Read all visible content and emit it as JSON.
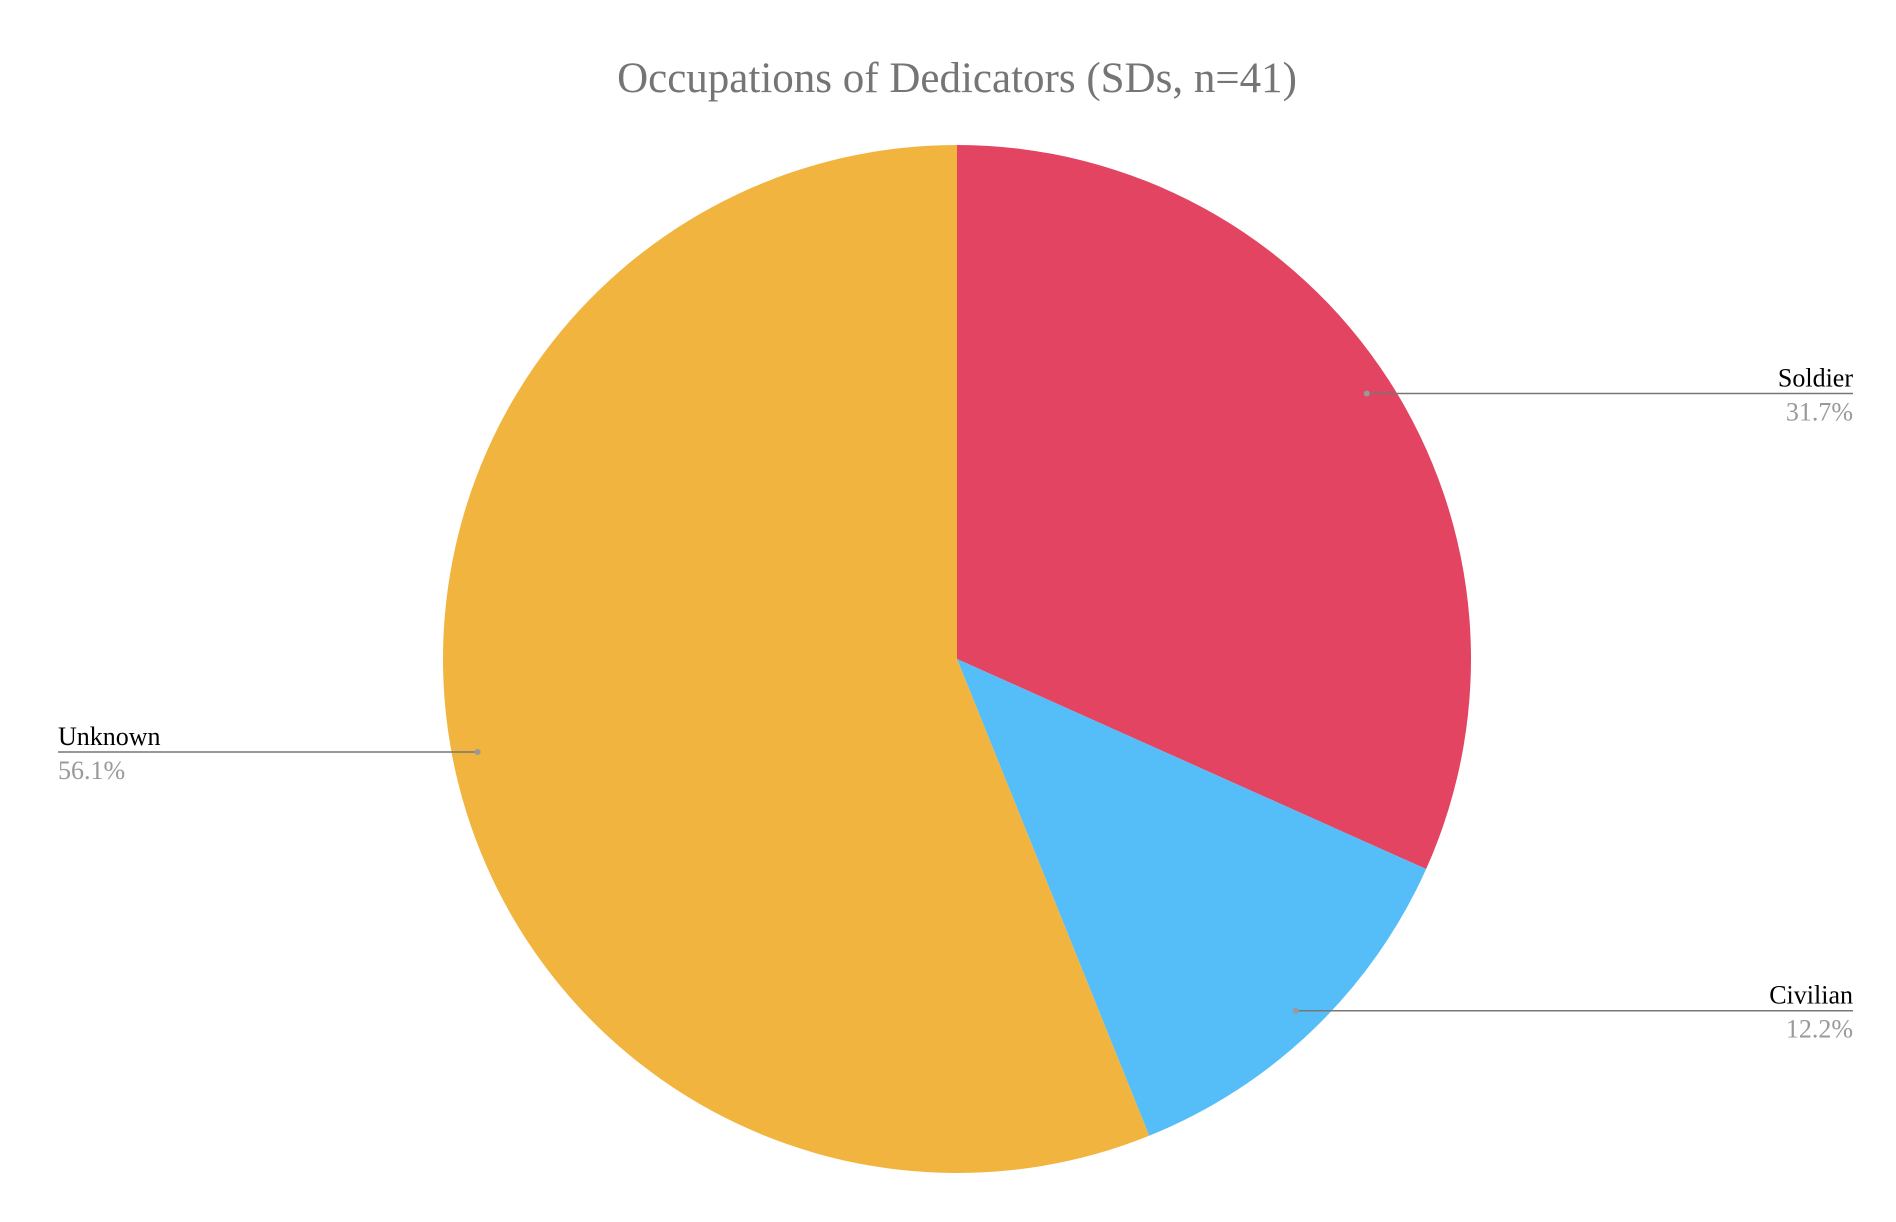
{
  "chart_data": {
    "type": "pie",
    "title": "Occupations of Dedicators (SDs, n=41)",
    "categories": [
      "Soldier",
      "Civilian",
      "Unknown"
    ],
    "values": [
      31.7,
      12.2,
      56.1
    ],
    "value_labels": [
      "31.7%",
      "12.2%",
      "56.1%"
    ],
    "colors": [
      "#e24462",
      "#55bdf7",
      "#f0b43f"
    ]
  }
}
